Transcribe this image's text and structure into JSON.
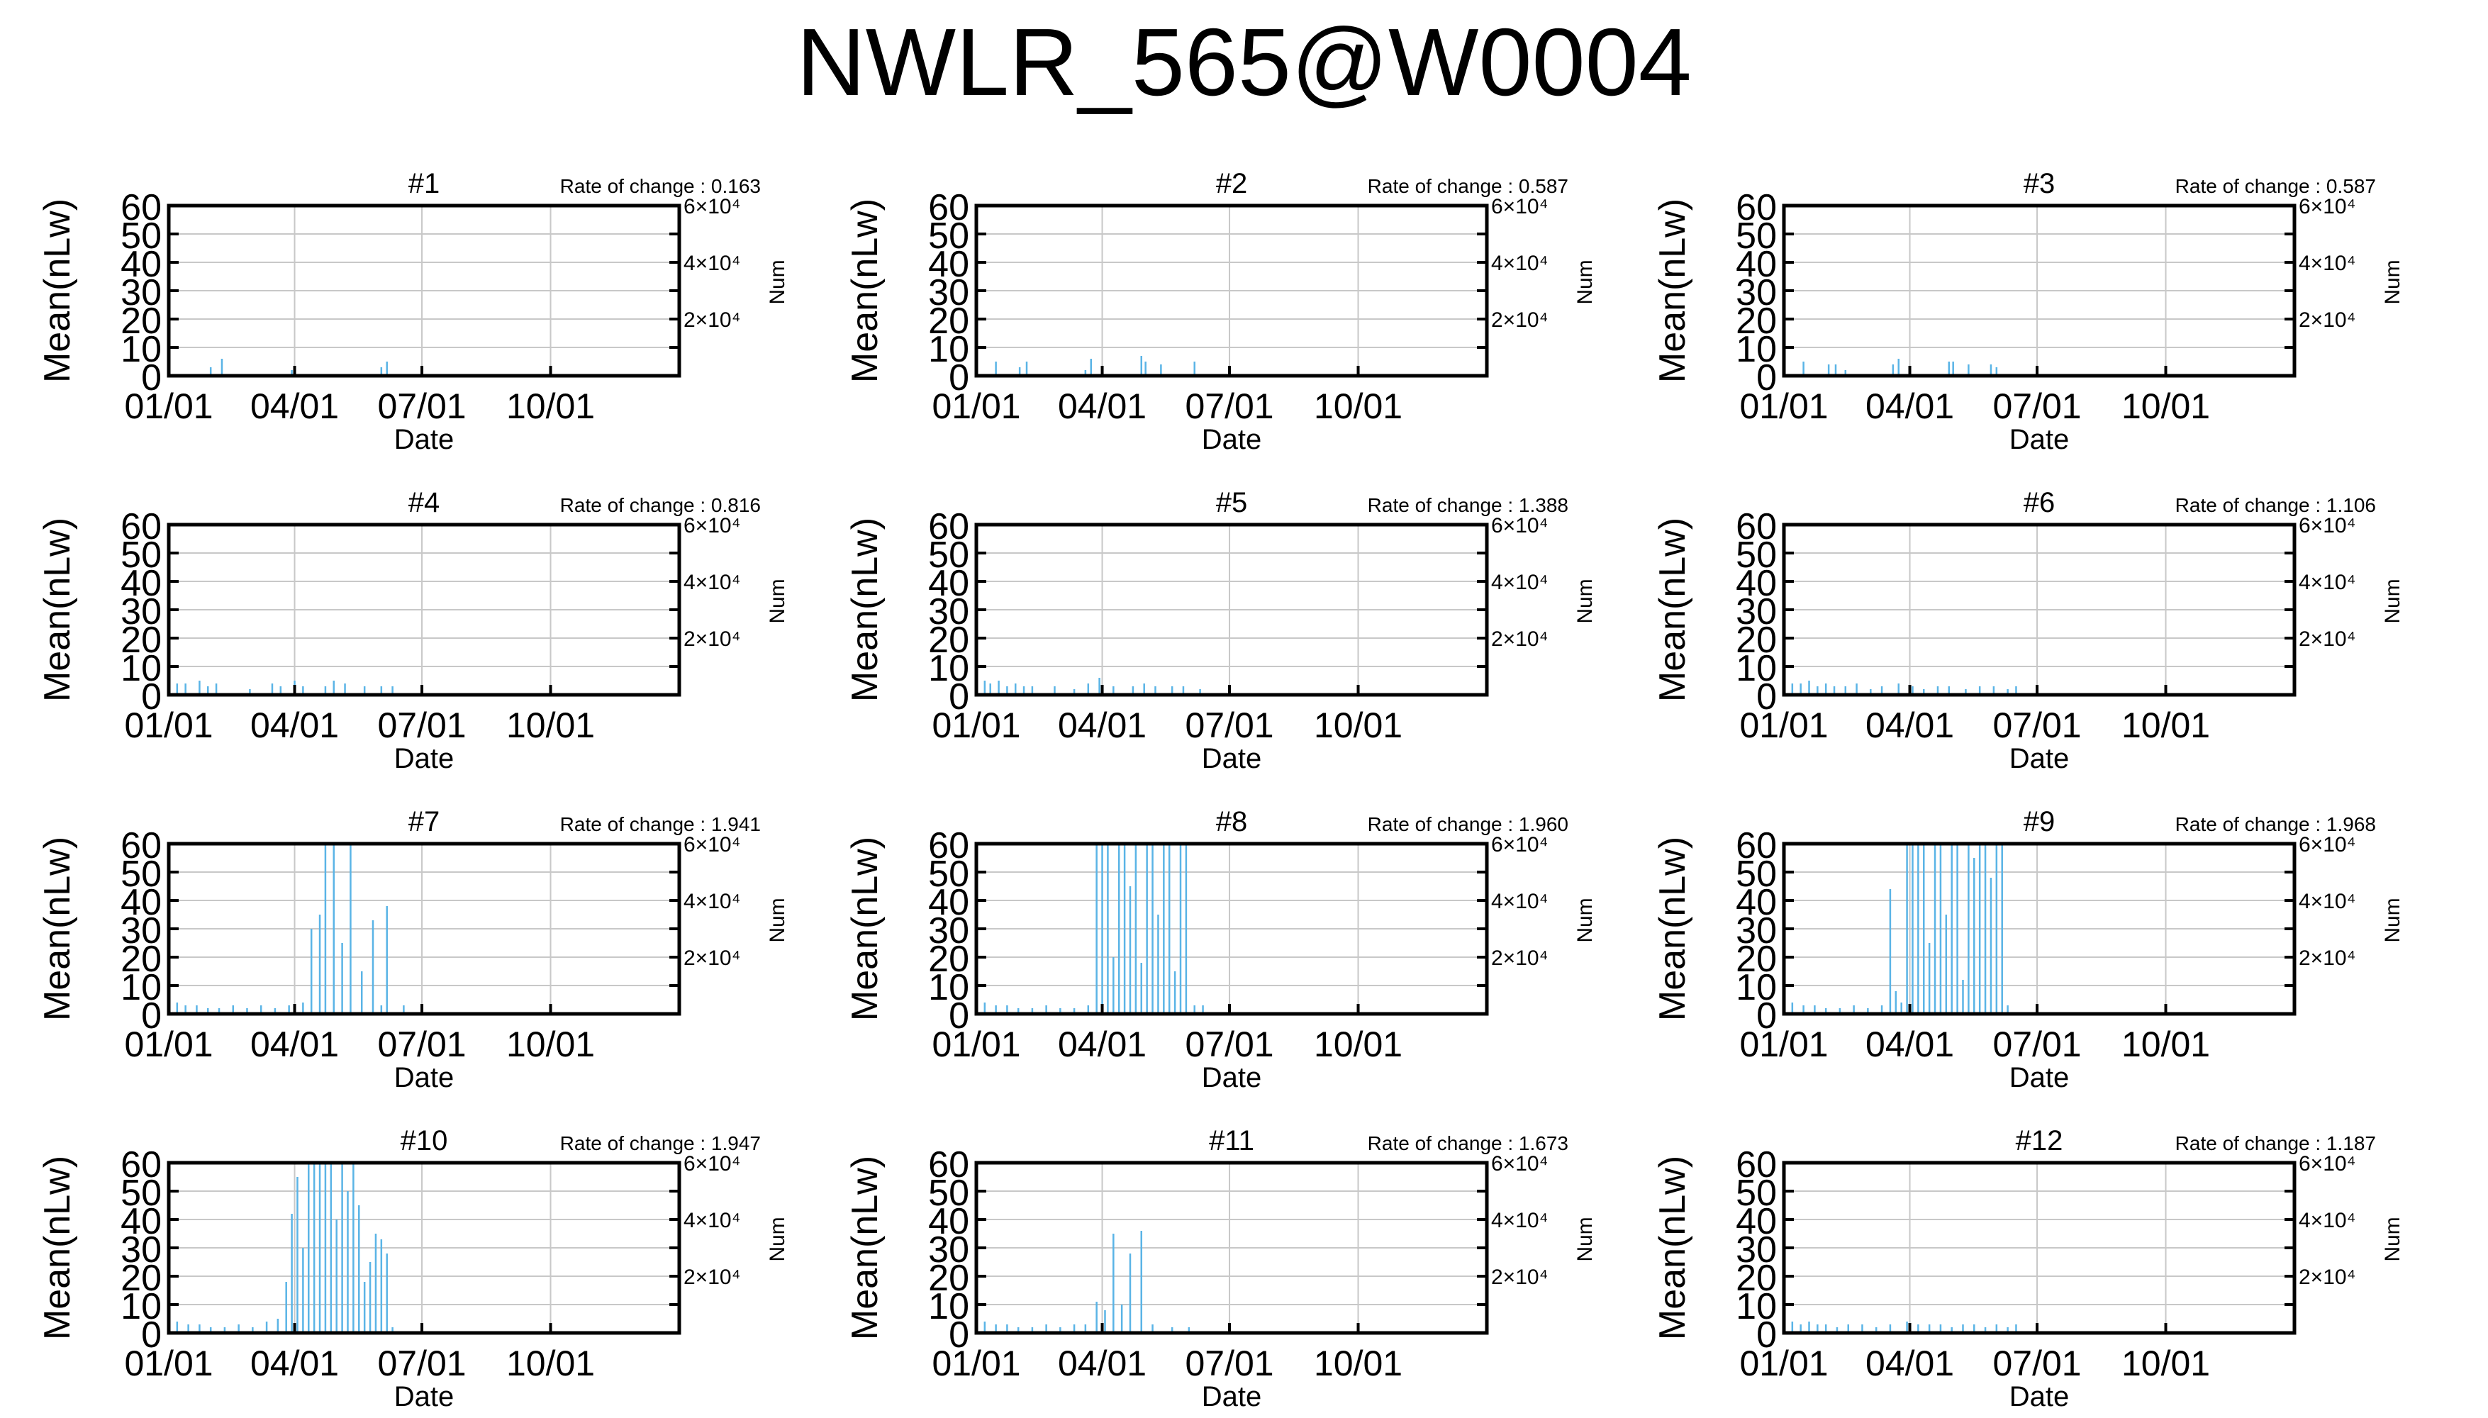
{
  "title": "NWLR_565@W0004",
  "colors": {
    "data": "#5ab4e6",
    "axis": "#000000",
    "grid": "#c8c8c8"
  },
  "common": {
    "ylabel": "Mean(nLw)",
    "xlabel": "Date",
    "y2label": "Num",
    "rate_prefix": "Rate of change : ",
    "yticks": [
      "0",
      "10",
      "20",
      "30",
      "40",
      "50",
      "60"
    ],
    "xticks": [
      "01/01",
      "04/01",
      "07/01",
      "10/01"
    ],
    "y2ticks": [
      "2×10⁴",
      "4×10⁴",
      "6×10⁴"
    ]
  },
  "chart_data": [
    {
      "type": "bar",
      "title": "#1",
      "rate": "0.163",
      "xlim_days": [
        0,
        365
      ],
      "ylim": [
        0,
        60
      ],
      "x_days": [
        30,
        38,
        88,
        152,
        156
      ],
      "values": [
        3,
        6,
        2,
        3,
        5
      ]
    },
    {
      "type": "bar",
      "title": "#2",
      "rate": "0.587",
      "xlim_days": [
        0,
        365
      ],
      "ylim": [
        0,
        60
      ],
      "x_days": [
        14,
        31,
        36,
        78,
        82,
        118,
        121,
        132,
        156
      ],
      "values": [
        5,
        3,
        5,
        2,
        6,
        7,
        5,
        4,
        5
      ]
    },
    {
      "type": "bar",
      "title": "#3",
      "rate": "0.587",
      "xlim_days": [
        0,
        365
      ],
      "ylim": [
        0,
        60
      ],
      "x_days": [
        14,
        32,
        37,
        44,
        78,
        82,
        118,
        121,
        132,
        148,
        152
      ],
      "values": [
        5,
        4,
        4,
        2,
        4,
        6,
        5,
        5,
        4,
        4,
        3
      ]
    },
    {
      "type": "bar",
      "title": "#4",
      "rate": "0.816",
      "xlim_days": [
        0,
        365
      ],
      "ylim": [
        0,
        60
      ],
      "x_days": [
        6,
        12,
        22,
        28,
        34,
        58,
        74,
        80,
        90,
        96,
        112,
        118,
        126,
        140,
        152,
        160
      ],
      "values": [
        4,
        4,
        5,
        3,
        4,
        2,
        4,
        3,
        5,
        3,
        3,
        5,
        4,
        3,
        3,
        3
      ]
    },
    {
      "type": "bar",
      "title": "#5",
      "rate": "1.388",
      "xlim_days": [
        0,
        365
      ],
      "ylim": [
        0,
        60
      ],
      "x_days": [
        6,
        10,
        16,
        22,
        28,
        34,
        40,
        56,
        70,
        80,
        88,
        98,
        112,
        120,
        128,
        140,
        148,
        160
      ],
      "values": [
        5,
        4,
        5,
        3,
        4,
        3,
        3,
        3,
        2,
        4,
        6,
        3,
        3,
        4,
        3,
        3,
        3,
        2
      ]
    },
    {
      "type": "bar",
      "title": "#6",
      "rate": "1.106",
      "xlim_days": [
        0,
        365
      ],
      "ylim": [
        0,
        60
      ],
      "x_days": [
        6,
        12,
        18,
        24,
        30,
        36,
        44,
        52,
        62,
        70,
        82,
        92,
        100,
        110,
        118,
        130,
        140,
        150,
        160,
        166
      ],
      "values": [
        4,
        4,
        5,
        3,
        4,
        3,
        3,
        4,
        2,
        3,
        4,
        3,
        2,
        3,
        3,
        2,
        3,
        3,
        2,
        3
      ]
    },
    {
      "type": "bar",
      "title": "#7",
      "rate": "1.941",
      "xlim_days": [
        0,
        365
      ],
      "ylim": [
        0,
        60
      ],
      "x_days": [
        6,
        12,
        20,
        28,
        36,
        46,
        56,
        66,
        76,
        86,
        96,
        102,
        108,
        112,
        118,
        124,
        130,
        138,
        146,
        152,
        156,
        168
      ],
      "values": [
        4,
        3,
        3,
        2,
        2,
        3,
        2,
        3,
        2,
        3,
        4,
        30,
        35,
        60,
        60,
        25,
        60,
        15,
        33,
        3,
        38,
        3
      ]
    },
    {
      "type": "bar",
      "title": "#8",
      "rate": "1.960",
      "xlim_days": [
        0,
        365
      ],
      "ylim": [
        0,
        60
      ],
      "x_days": [
        6,
        14,
        22,
        30,
        40,
        50,
        60,
        70,
        80,
        86,
        90,
        94,
        98,
        102,
        106,
        110,
        114,
        118,
        122,
        126,
        130,
        134,
        138,
        142,
        146,
        150,
        156,
        162
      ],
      "values": [
        4,
        3,
        3,
        2,
        2,
        3,
        2,
        2,
        3,
        60,
        60,
        60,
        20,
        60,
        60,
        45,
        60,
        18,
        60,
        60,
        35,
        60,
        60,
        15,
        60,
        60,
        3,
        3
      ]
    },
    {
      "type": "bar",
      "title": "#9",
      "rate": "1.968",
      "xlim_days": [
        0,
        365
      ],
      "ylim": [
        0,
        60
      ],
      "x_days": [
        6,
        14,
        22,
        30,
        40,
        50,
        60,
        70,
        76,
        80,
        84,
        88,
        92,
        96,
        100,
        104,
        108,
        112,
        116,
        120,
        124,
        128,
        132,
        136,
        140,
        144,
        148,
        152,
        156,
        160
      ],
      "values": [
        4,
        3,
        3,
        2,
        2,
        3,
        2,
        3,
        44,
        8,
        4,
        60,
        60,
        60,
        60,
        25,
        60,
        60,
        35,
        60,
        60,
        12,
        60,
        55,
        60,
        60,
        48,
        60,
        60,
        3
      ]
    },
    {
      "type": "bar",
      "title": "#10",
      "rate": "1.947",
      "xlim_days": [
        0,
        365
      ],
      "ylim": [
        0,
        60
      ],
      "x_days": [
        6,
        14,
        22,
        30,
        40,
        50,
        60,
        70,
        78,
        84,
        88,
        92,
        96,
        100,
        104,
        108,
        112,
        116,
        120,
        124,
        128,
        132,
        136,
        140,
        144,
        148,
        152,
        156,
        160
      ],
      "values": [
        4,
        3,
        3,
        2,
        2,
        3,
        2,
        4,
        5,
        18,
        42,
        55,
        30,
        60,
        60,
        60,
        60,
        60,
        40,
        60,
        50,
        60,
        45,
        18,
        25,
        35,
        33,
        28,
        2
      ]
    },
    {
      "type": "bar",
      "title": "#11",
      "rate": "1.673",
      "xlim_days": [
        0,
        365
      ],
      "ylim": [
        0,
        60
      ],
      "x_days": [
        6,
        14,
        22,
        30,
        40,
        50,
        60,
        70,
        78,
        86,
        92,
        98,
        104,
        110,
        118,
        126,
        140,
        152
      ],
      "values": [
        4,
        3,
        3,
        2,
        2,
        3,
        2,
        3,
        3,
        11,
        8,
        35,
        10,
        28,
        36,
        3,
        2,
        2
      ]
    },
    {
      "type": "bar",
      "title": "#12",
      "rate": "1.187",
      "xlim_days": [
        0,
        365
      ],
      "ylim": [
        0,
        60
      ],
      "x_days": [
        6,
        12,
        18,
        24,
        30,
        38,
        46,
        56,
        66,
        76,
        88,
        96,
        104,
        112,
        120,
        128,
        136,
        144,
        152,
        160,
        166
      ],
      "values": [
        4,
        3,
        4,
        3,
        3,
        2,
        3,
        3,
        2,
        3,
        4,
        3,
        3,
        3,
        2,
        3,
        3,
        2,
        3,
        2,
        3
      ]
    }
  ]
}
